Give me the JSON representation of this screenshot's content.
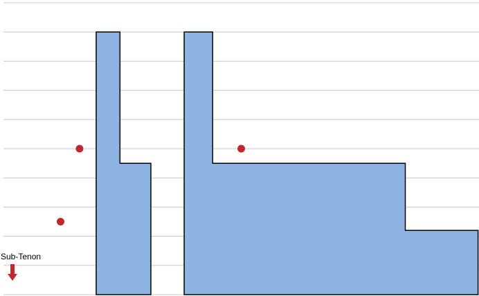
{
  "chart_data": {
    "type": "area",
    "ylim": [
      0,
      10
    ],
    "grid": true,
    "colors": {
      "fill": "#8eb4e3",
      "outline": "#000000",
      "grid": "#c8c8c8",
      "marker": "#c0282e",
      "arrow": "#c0282e"
    },
    "shapes": [
      {
        "points": [
          [
            0.195,
            0
          ],
          [
            0.195,
            9
          ],
          [
            0.245,
            9
          ],
          [
            0.245,
            4.5
          ],
          [
            0.31,
            4.5
          ],
          [
            0.31,
            0
          ]
        ]
      },
      {
        "points": [
          [
            0.38,
            0
          ],
          [
            0.38,
            9
          ],
          [
            0.44,
            9
          ],
          [
            0.44,
            4.5
          ],
          [
            0.845,
            4.5
          ],
          [
            0.845,
            2.2
          ],
          [
            0.998,
            2.2
          ],
          [
            0.998,
            0
          ]
        ]
      }
    ],
    "points": [
      {
        "x": 0.16,
        "y": 5.0
      },
      {
        "x": 0.12,
        "y": 2.5
      },
      {
        "x": 0.5,
        "y": 5.0
      }
    ],
    "annotations": [
      {
        "text": "Sub-Tenon",
        "marker": "down-arrow-icon"
      }
    ]
  }
}
